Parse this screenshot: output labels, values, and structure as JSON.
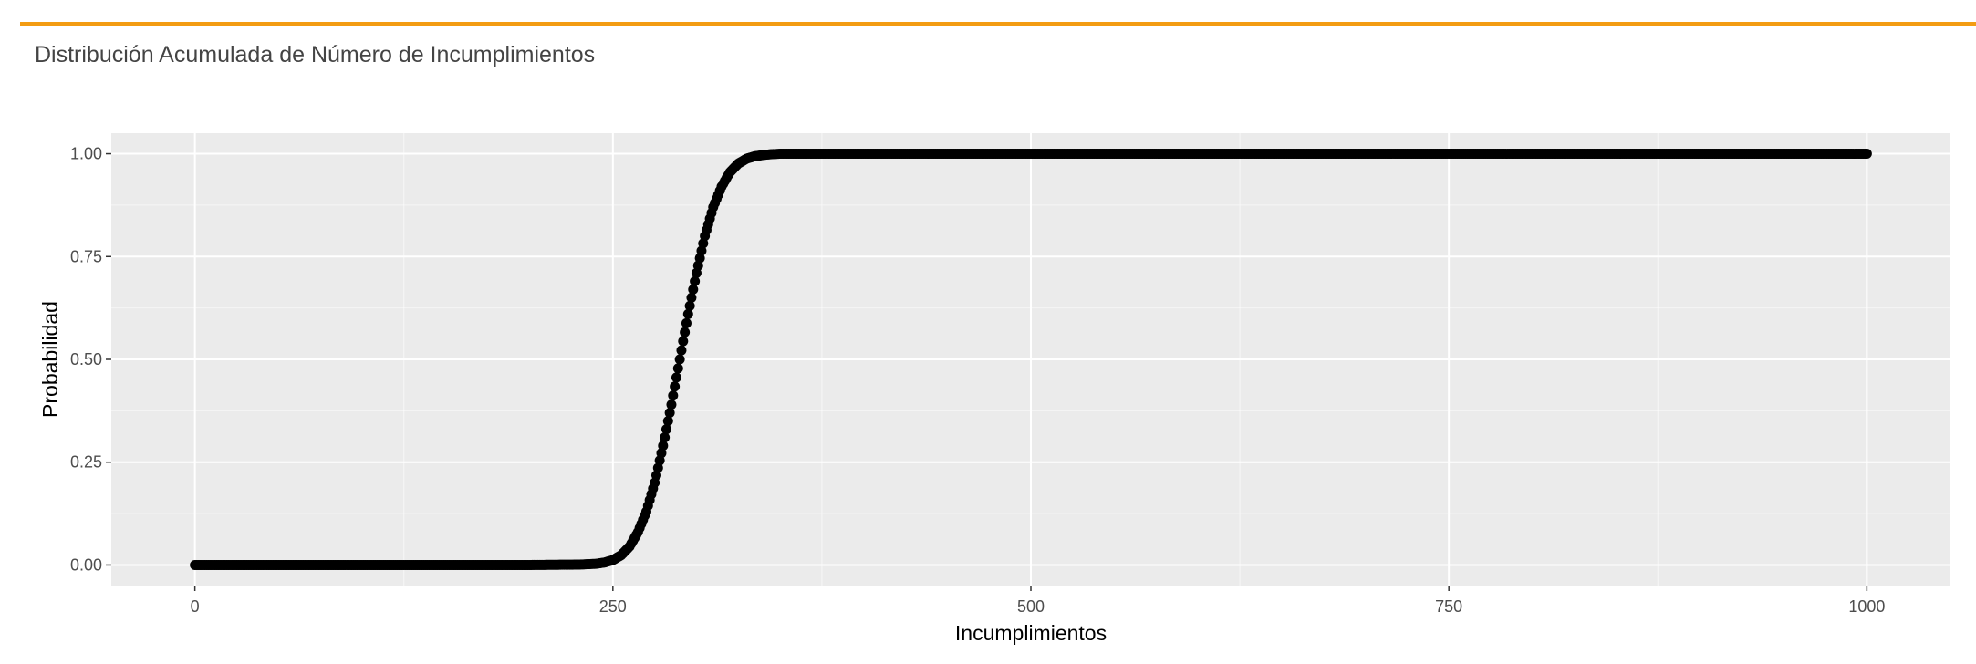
{
  "panel": {
    "title": "Distribución Acumulada de Número de Incumplimientos",
    "accent_color": "#f39c12"
  },
  "chart_data": {
    "type": "scatter",
    "title": "",
    "xlabel": "Incumplimientos",
    "ylabel": "Probabilidad",
    "xlim": [
      -50,
      1050
    ],
    "ylim": [
      -0.05,
      1.05
    ],
    "x_ticks": [
      0,
      250,
      500,
      750,
      1000
    ],
    "x_tick_labels": [
      "0",
      "250",
      "500",
      "750",
      "1000"
    ],
    "y_ticks": [
      0,
      0.25,
      0.5,
      0.75,
      1
    ],
    "y_tick_labels": [
      "0.00",
      "0.25",
      "0.50",
      "0.75",
      "1.00"
    ],
    "grid": true,
    "legend": "none",
    "panel_background": "#ebebeb",
    "grid_color": "#ffffff",
    "point_color": "#000000",
    "series": [
      {
        "x": [
          0,
          50,
          100,
          150,
          200,
          230,
          240,
          245,
          250,
          255,
          260,
          265,
          270,
          275,
          280,
          285,
          290,
          295,
          300,
          305,
          310,
          315,
          320,
          325,
          330,
          335,
          340,
          345,
          350,
          360,
          400,
          450,
          500,
          550,
          600,
          650,
          700,
          750,
          800,
          850,
          900,
          950,
          1000
        ],
        "y": [
          0,
          0,
          0,
          0,
          0,
          0.001,
          0.003,
          0.006,
          0.012,
          0.024,
          0.045,
          0.08,
          0.13,
          0.2,
          0.29,
          0.39,
          0.5,
          0.61,
          0.71,
          0.8,
          0.87,
          0.92,
          0.955,
          0.976,
          0.988,
          0.994,
          0.997,
          0.999,
          1,
          1,
          1,
          1,
          1,
          1,
          1,
          1,
          1,
          1,
          1,
          1,
          1,
          1,
          1
        ]
      }
    ]
  }
}
